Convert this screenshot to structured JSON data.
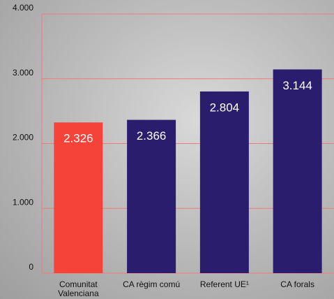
{
  "chart_data": {
    "type": "bar",
    "categories": [
      "Comunitat Valenciana",
      "CA règim comú",
      "Referent UE¹",
      "CA forals"
    ],
    "values": [
      2326,
      2366,
      2804,
      3144
    ],
    "value_labels": [
      "2.326",
      "2.366",
      "2.804",
      "3.144"
    ],
    "colors": [
      "#f5433a",
      "#2b1d6e",
      "#2b1d6e",
      "#2b1d6e"
    ],
    "grid_color": "#f07a78",
    "ylim": [
      0,
      4000
    ],
    "yticks": [
      {
        "value": 0,
        "label": "0"
      },
      {
        "value": 1000,
        "label": "1.000"
      },
      {
        "value": 2000,
        "label": "2.000"
      },
      {
        "value": 3000,
        "label": "3.000"
      },
      {
        "value": 4000,
        "label": "4.000"
      }
    ],
    "grid": true
  }
}
